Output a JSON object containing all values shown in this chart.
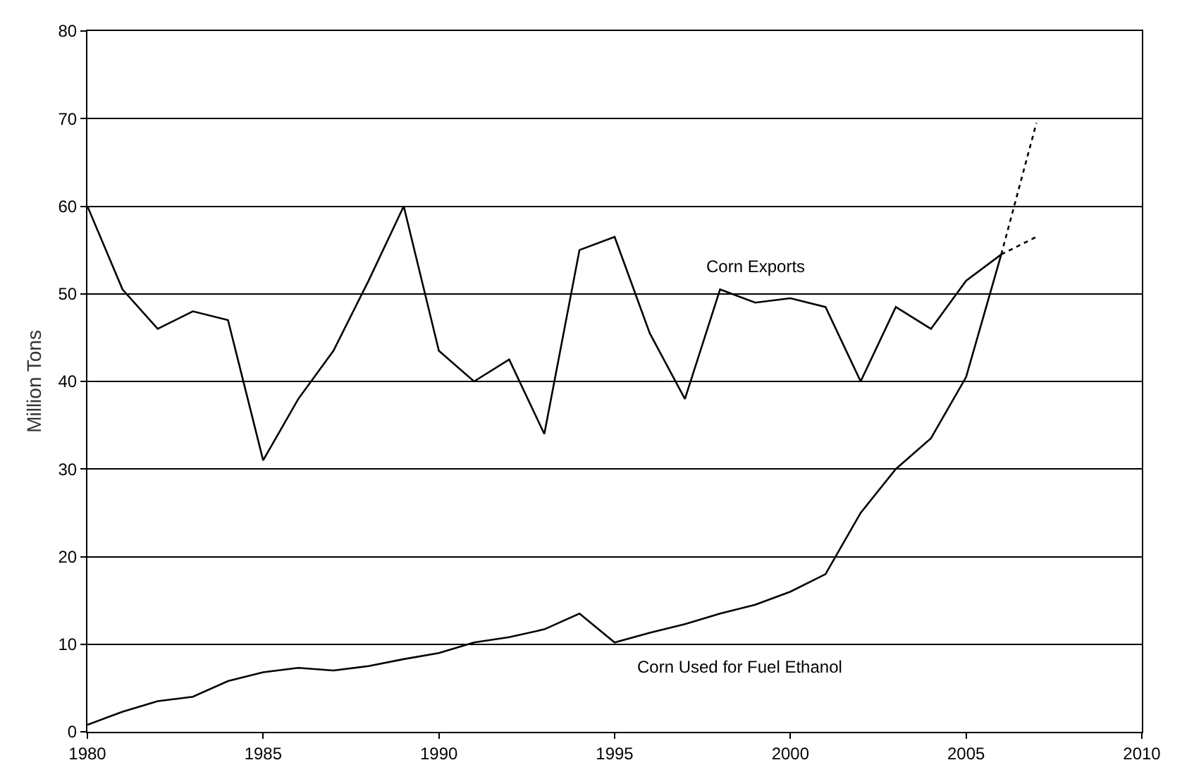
{
  "chart_data": {
    "type": "line",
    "ylabel": "Million Tons",
    "xlim": [
      1980,
      2010
    ],
    "xticks": [
      1980,
      1985,
      1990,
      1995,
      2000,
      2005,
      2010
    ],
    "ylim": [
      0,
      80
    ],
    "yticks": [
      0,
      10,
      20,
      30,
      40,
      50,
      60,
      70,
      80
    ],
    "grid": "y",
    "marker": "none",
    "series": [
      {
        "name": "Corn Exports",
        "color": "#000000",
        "line_style": "solid",
        "x": [
          1980,
          1981,
          1982,
          1983,
          1984,
          1985,
          1986,
          1987,
          1988,
          1989,
          1990,
          1991,
          1992,
          1993,
          1994,
          1995,
          1996,
          1997,
          1998,
          1999,
          2000,
          2001,
          2002,
          2003,
          2004,
          2005,
          2006
        ],
        "values": [
          60,
          50.5,
          46,
          48,
          47,
          31,
          38,
          43.5,
          51.5,
          60,
          43.5,
          40,
          42.5,
          34,
          55,
          56.5,
          45.5,
          38,
          50.5,
          49,
          49.5,
          48.5,
          40,
          48.5,
          46,
          51.5,
          54.5
        ]
      },
      {
        "name": "Corn Used for Fuel Ethanol",
        "color": "#000000",
        "line_style": "solid",
        "x": [
          1980,
          1981,
          1982,
          1983,
          1984,
          1985,
          1986,
          1987,
          1988,
          1989,
          1990,
          1991,
          1992,
          1993,
          1994,
          1995,
          1996,
          1997,
          1998,
          1999,
          2000,
          2001,
          2002,
          2003,
          2004,
          2005,
          2006
        ],
        "values": [
          0.8,
          2.3,
          3.5,
          4,
          5.8,
          6.8,
          7.3,
          7,
          7.5,
          8.3,
          9,
          10.2,
          10.8,
          11.7,
          13.5,
          10.2,
          11.3,
          12.3,
          13.5,
          14.5,
          16,
          18,
          25,
          30,
          33.5,
          40.5,
          54.5
        ]
      },
      {
        "color": "#000000",
        "line_style": "dotted",
        "x": [
          2006,
          2007
        ],
        "values": [
          54.5,
          56.5
        ]
      },
      {
        "color": "#000000",
        "line_style": "dotted",
        "x": [
          2006,
          2007
        ],
        "values": [
          54.5,
          69.5
        ]
      }
    ]
  }
}
